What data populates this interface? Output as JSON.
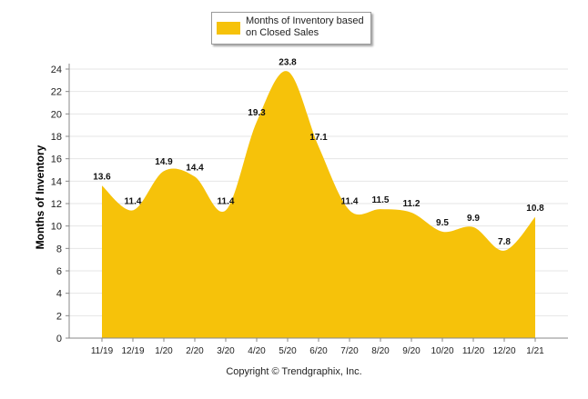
{
  "chart_data": {
    "type": "area",
    "categories": [
      "11/19",
      "12/19",
      "1/20",
      "2/20",
      "3/20",
      "4/20",
      "5/20",
      "6/20",
      "7/20",
      "8/20",
      "9/20",
      "10/20",
      "11/20",
      "12/20",
      "1/21"
    ],
    "series": [
      {
        "name": "Months of Inventory based on Closed Sales",
        "values": [
          13.6,
          11.4,
          14.9,
          14.4,
          11.4,
          19.3,
          23.8,
          17.1,
          11.4,
          11.5,
          11.2,
          9.5,
          9.9,
          7.8,
          10.8
        ],
        "labels": [
          "13.6",
          "11.4",
          "14.9",
          "14.4",
          "11.4",
          "19.3",
          "23.8",
          "17.1",
          "11.4",
          "11.5",
          "11.2",
          "9.5",
          "9.9",
          "7.8",
          "10.8"
        ],
        "color": "#f6c20a"
      }
    ],
    "ylabel": "Months of Inventory",
    "xlabel": "",
    "ylim": [
      0,
      24
    ],
    "yticks": [
      "0",
      "2",
      "4",
      "6",
      "8",
      "10",
      "12",
      "14",
      "16",
      "18",
      "20",
      "22",
      "24"
    ],
    "grid": true,
    "legend_position": "top-center",
    "legend_text": "Months of Inventory based\non Closed Sales",
    "footer": "Copyright © Trendgraphix, Inc."
  }
}
